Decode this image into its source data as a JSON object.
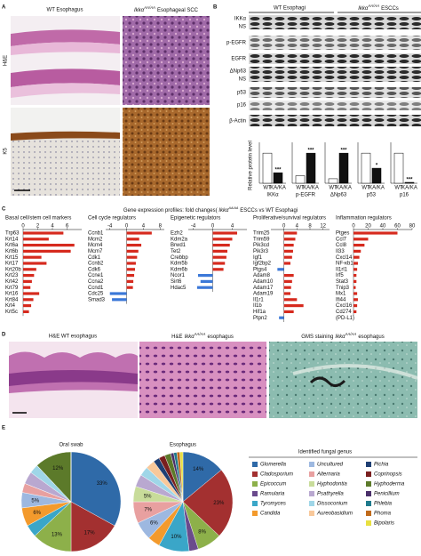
{
  "panel_a": {
    "label": "A",
    "wt_title": "WT Esophagus",
    "mut_gene": "Ikkα",
    "mut_sup": "AA/AA",
    "mut_rest": "Esophageal SCC",
    "rows": [
      "H&E",
      "K5"
    ]
  },
  "panel_b": {
    "label": "B",
    "wt_title": "WT Esophagi",
    "mut_gene": "Ikkα",
    "mut_sup": "AA/AA",
    "mut_rest": "ESCCs",
    "blots": [
      "IKKα",
      "NS",
      "p-EGFR",
      "EGFR",
      "ΔNp63",
      "NS",
      "p53",
      "p16",
      "β-Actin"
    ],
    "chart": {
      "type": "bar",
      "y_label": "Relative protein level",
      "categories": [
        "IKKα",
        "p-EGFR",
        "ΔNp63",
        "p53",
        "p16"
      ],
      "series": [
        {
          "name": "WT",
          "color": "#ffffff",
          "values": [
            1.0,
            0.25,
            0.15,
            1.0,
            1.0
          ]
        },
        {
          "name": "KA/KA",
          "color": "#111111",
          "values": [
            0.35,
            1.0,
            1.0,
            0.5,
            0.03
          ]
        }
      ],
      "significance": [
        "***",
        "***",
        "***",
        "*",
        "***"
      ],
      "ylim": [
        0,
        1.3
      ]
    }
  },
  "panel_c": {
    "label": "C",
    "title_pre": "Gene expression profiles: fold changes(",
    "title_gene": "Ikkα",
    "title_sup": "AA/AA",
    "title_post": "ESCCs vs WT Esophagi",
    "colors": {
      "up": "#d62a1e",
      "down": "#3b78d8"
    },
    "groups": [
      {
        "title": "Basal cell/stem cell markers",
        "genes": [
          "Trp63",
          "Krt14",
          "Krt6a",
          "Krt6b",
          "Krt15",
          "Krt17",
          "Krt20b",
          "Krt23",
          "Krt42",
          "Krt79",
          "Krt16",
          "Krt84",
          "Krt4",
          "Krt5c"
        ],
        "values": [
          5.5,
          3.5,
          7,
          6.5,
          2.5,
          3.2,
          1.8,
          1.5,
          1.2,
          1.0,
          2.2,
          1.4,
          1.1,
          0.8
        ],
        "xlim": [
          0,
          8
        ],
        "xticks": [
          0,
          2,
          4,
          6
        ]
      },
      {
        "title": "Cell cycle regulators",
        "genes": [
          "Ccnb1",
          "Mcm2",
          "Mcm4",
          "Mcm7",
          "Cdk1",
          "Ccnb2",
          "Cdk6",
          "Ccne1",
          "Ccna2",
          "Ccnd1",
          "Cdc25",
          "Smad3"
        ],
        "values": [
          6,
          3,
          3.5,
          2.8,
          2.5,
          2.2,
          2,
          1.8,
          1.6,
          1.5,
          -4,
          -3.5
        ],
        "xlim": [
          -5,
          9
        ],
        "xticks": [
          -4,
          0,
          4,
          8
        ]
      },
      {
        "title": "Epigenetic regulators",
        "genes": [
          "Ezh2",
          "Kdm2a",
          "Brwd1",
          "Tet2",
          "Crebbp",
          "Kdm5b",
          "Kdm6b",
          "Ncor1",
          "Sirt6",
          "Hdac5"
        ],
        "values": [
          5,
          4,
          3.5,
          3,
          2.8,
          2.5,
          2.2,
          -3,
          -2.5,
          -3.2
        ],
        "xlim": [
          -5,
          7
        ],
        "xticks": [
          -4,
          0,
          4
        ]
      },
      {
        "title": "Proliferative/survival regulators",
        "genes": [
          "Trim25",
          "Trim59",
          "Pik3cd",
          "Pik3r3",
          "Igf1",
          "Igf2bp2",
          "Ptgs4",
          "Adam8",
          "Adam10",
          "Adam17",
          "Adam19",
          "Il1r1",
          "Il1b",
          "Hif1a",
          "Ptpn2"
        ],
        "values": [
          4,
          3.5,
          3,
          2.8,
          2.5,
          2,
          -2,
          3,
          2.5,
          2.2,
          2,
          4,
          6,
          3,
          -1.5
        ],
        "xlim": [
          -4,
          14
        ],
        "xticks": [
          0,
          4,
          8,
          12
        ]
      },
      {
        "title": "Inflammation regulators",
        "genes": [
          "Ptges",
          "Ccl7",
          "Ccl8",
          "Il33",
          "Cxcl14",
          "NF-κb1",
          "Il1rl1",
          "Irf5",
          "Stat3",
          "Tnip3",
          "Mx1",
          "Ifi44",
          "Cxcl16",
          "Cd274"
        ],
        "values": [
          60,
          20,
          15,
          10,
          8,
          6,
          5,
          4,
          4,
          3,
          5,
          6,
          5,
          4
        ],
        "xlim": [
          0,
          80
        ],
        "xticks": [
          0,
          20,
          40,
          60,
          80
        ],
        "note": "(PD-L1)"
      }
    ]
  },
  "panel_d": {
    "label": "D",
    "t1": "H&E  WT  esophagus",
    "t2_pre": "H&E",
    "t3_pre": "GMS staining",
    "gene": "Ikkα",
    "sup": "AA/AA",
    "post": "esophagus"
  },
  "panel_e": {
    "label": "E",
    "legend_title": "Identified fungal genus",
    "genera": [
      "Glomerella",
      "Cladosporium",
      "Epicoccum",
      "Ramularia",
      "Tyromyces",
      "Candida",
      "Uncultured",
      "Alternaria",
      "Hyphodontia",
      "Psathyrella",
      "Dissoconium",
      "Aureobasidium",
      "Pichia",
      "Coprinopsis",
      "Hyphoderma",
      "Penicillium",
      "Phlebia",
      "Phoma",
      "Bipolaris"
    ],
    "colors": [
      "#2f6aa8",
      "#a33030",
      "#8db04a",
      "#6a4a8c",
      "#3aa6c8",
      "#f39a2c",
      "#9db8e0",
      "#e8a0a0",
      "#c8dc9a",
      "#b9a8d0",
      "#9fd6e8",
      "#f8c89a",
      "#1f3f73",
      "#7a1f1f",
      "#5c7a2a",
      "#4a2f6a",
      "#1f7a8c",
      "#c06a1a",
      "#e8e040"
    ],
    "pies": [
      {
        "title": "Oral swab",
        "values": [
          33,
          17,
          13,
          0,
          4,
          6,
          5,
          3,
          0,
          4,
          3,
          0,
          0,
          0,
          12,
          0,
          0,
          0,
          0
        ],
        "value_labels": [
          "33%",
          "17%",
          "13%",
          null,
          null,
          "6%",
          "5%",
          null,
          null,
          null,
          null,
          null,
          null,
          null,
          "12%",
          null,
          null,
          null,
          null
        ]
      },
      {
        "title": "Esophagus",
        "values": [
          14,
          23,
          8,
          3,
          10,
          4,
          6,
          7,
          5,
          4,
          3,
          3,
          2,
          2,
          2,
          1,
          1,
          1,
          1
        ],
        "value_labels": [
          "14%",
          "23%",
          "8%",
          null,
          "10%",
          null,
          "6%",
          "7%",
          "5%",
          null,
          null,
          null,
          null,
          null,
          null,
          null,
          null,
          null,
          null
        ]
      }
    ]
  }
}
